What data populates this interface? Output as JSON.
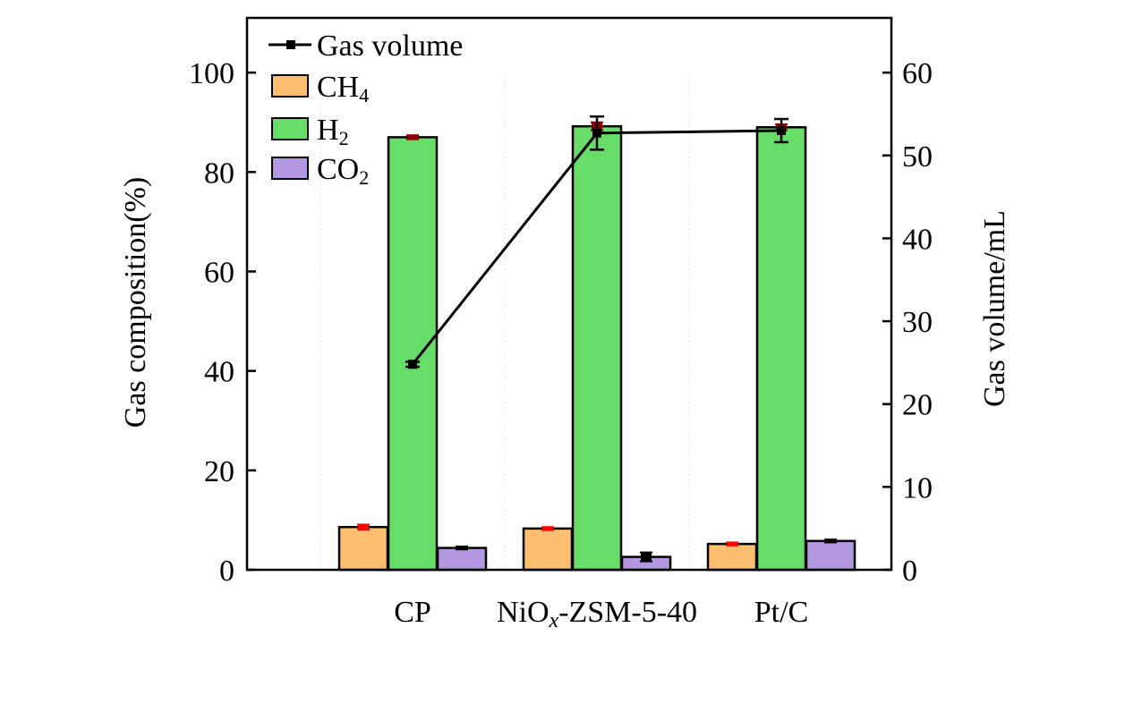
{
  "chart_data": {
    "type": "bar",
    "categories": [
      "CP",
      "NiOx-ZSM-5-40",
      "Pt/C"
    ],
    "category_labels": [
      {
        "main": "CP"
      },
      {
        "pre": "NiO",
        "sub": "x",
        "post": "-ZSM-5-40"
      },
      {
        "main": "Pt/C"
      }
    ],
    "ylabel": "Gas composition(%)",
    "y2label": "Gas volume/mL",
    "ylim": [
      0,
      111
    ],
    "y2lim": [
      0,
      66.6
    ],
    "yticks": [
      0,
      20,
      40,
      60,
      80,
      100
    ],
    "y2ticks": [
      0,
      10,
      20,
      30,
      40,
      50,
      60
    ],
    "series": [
      {
        "name": "CH4",
        "label_main": "CH",
        "label_sub": "4",
        "color": "#fdbf6f",
        "err_color": "#ff0000",
        "values": [
          8.6,
          8.3,
          5.2
        ],
        "errors": [
          0.5,
          0.3,
          0.3
        ]
      },
      {
        "name": "H2",
        "label_main": "H",
        "label_sub": "2",
        "color": "#66dd66",
        "err_color": "#8b0000",
        "values": [
          87.0,
          89.2,
          89.0
        ],
        "errors": [
          0.4,
          0.8,
          0.6
        ]
      },
      {
        "name": "CO2",
        "label_main": "CO",
        "label_sub": "2",
        "color": "#b497e1",
        "err_color": "#000000",
        "values": [
          4.4,
          2.6,
          5.8
        ],
        "errors": [
          0.3,
          0.9,
          0.3
        ]
      }
    ],
    "line_series": {
      "name": "Gas volume",
      "label": "Gas volume",
      "axis": "right",
      "color": "#000000",
      "values": [
        24.8,
        52.7,
        53.0
      ],
      "errors": [
        0.3,
        2.0,
        1.4
      ]
    },
    "legend_position": "top-left"
  }
}
